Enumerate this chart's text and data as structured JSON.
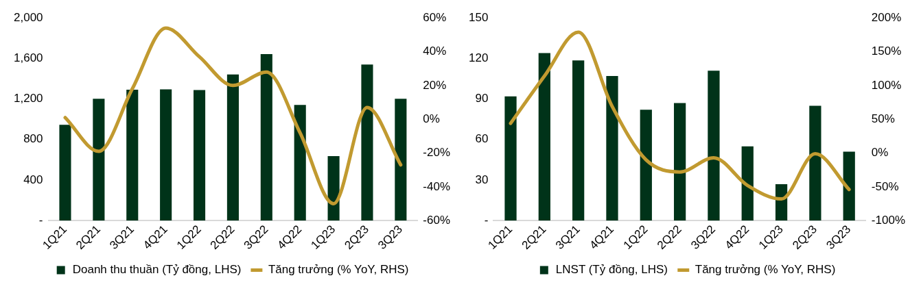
{
  "chart_data": [
    {
      "type": "bar",
      "categories": [
        "1Q21",
        "2Q21",
        "3Q21",
        "4Q21",
        "1Q22",
        "2Q22",
        "3Q22",
        "4Q22",
        "1Q23",
        "2Q23",
        "3Q23"
      ],
      "series": [
        {
          "name": "Doanh thu thuần (Tỷ đồng, LHS)",
          "color": "#003319",
          "values": [
            945,
            1203,
            1292,
            1296,
            1289,
            1443,
            1643,
            1141,
            636,
            1540,
            1203
          ]
        },
        {
          "name": "Tăng trưởng (% YoY, RHS)",
          "type": "line",
          "axis": "y2",
          "color": "#c19a30",
          "values": [
            1,
            -19,
            18,
            54,
            37,
            20,
            28,
            -8,
            -50,
            7,
            -27
          ]
        }
      ],
      "ylim": [
        0,
        2000
      ],
      "yticks": [
        {
          "value": 0,
          "label": "-"
        },
        {
          "value": 400,
          "label": "400"
        },
        {
          "value": 800,
          "label": "800"
        },
        {
          "value": 1200,
          "label": "1,200"
        },
        {
          "value": 1600,
          "label": "1,600"
        },
        {
          "value": 2000,
          "label": "2,000"
        }
      ],
      "y2lim": [
        -60,
        60
      ],
      "y2ticks": [
        {
          "value": -60,
          "label": "-60%"
        },
        {
          "value": -40,
          "label": "-40%"
        },
        {
          "value": -20,
          "label": "-20%"
        },
        {
          "value": 0,
          "label": "0%"
        },
        {
          "value": 20,
          "label": "20%"
        },
        {
          "value": 40,
          "label": "40%"
        },
        {
          "value": 60,
          "label": "60%"
        }
      ],
      "grid": false,
      "legend": "bottom",
      "marker": "none",
      "line_style": "solid"
    },
    {
      "type": "bar",
      "categories": [
        "1Q21",
        "2Q21",
        "3Q21",
        "4Q21",
        "1Q22",
        "2Q22",
        "3Q22",
        "4Q22",
        "1Q23",
        "2Q23",
        "3Q23"
      ],
      "series": [
        {
          "name": "LNST (Tỷ đồng, LHS)",
          "color": "#003319",
          "values": [
            92,
            124,
            118.5,
            107,
            82,
            87,
            111,
            55,
            27,
            85,
            51
          ]
        },
        {
          "name": "Tăng trưởng (% YoY, RHS)",
          "type": "line",
          "axis": "y2",
          "color": "#c19a30",
          "values": [
            44,
            114,
            179,
            69,
            -10,
            -28,
            -7,
            -48,
            -68,
            -1,
            -54
          ]
        }
      ],
      "ylim": [
        0,
        150
      ],
      "yticks": [
        {
          "value": 0,
          "label": "-"
        },
        30,
        60,
        90,
        120,
        150
      ],
      "y2lim": [
        -100,
        200
      ],
      "y2ticks": [
        {
          "value": -100,
          "label": "-100%"
        },
        {
          "value": -50,
          "label": "-50%"
        },
        {
          "value": 0,
          "label": "0%"
        },
        {
          "value": 50,
          "label": "50%"
        },
        {
          "value": 100,
          "label": "100%"
        },
        {
          "value": 150,
          "label": "150%"
        },
        {
          "value": 200,
          "label": "200%"
        }
      ],
      "grid": false,
      "legend": "bottom",
      "marker": "none",
      "line_style": "solid"
    }
  ]
}
